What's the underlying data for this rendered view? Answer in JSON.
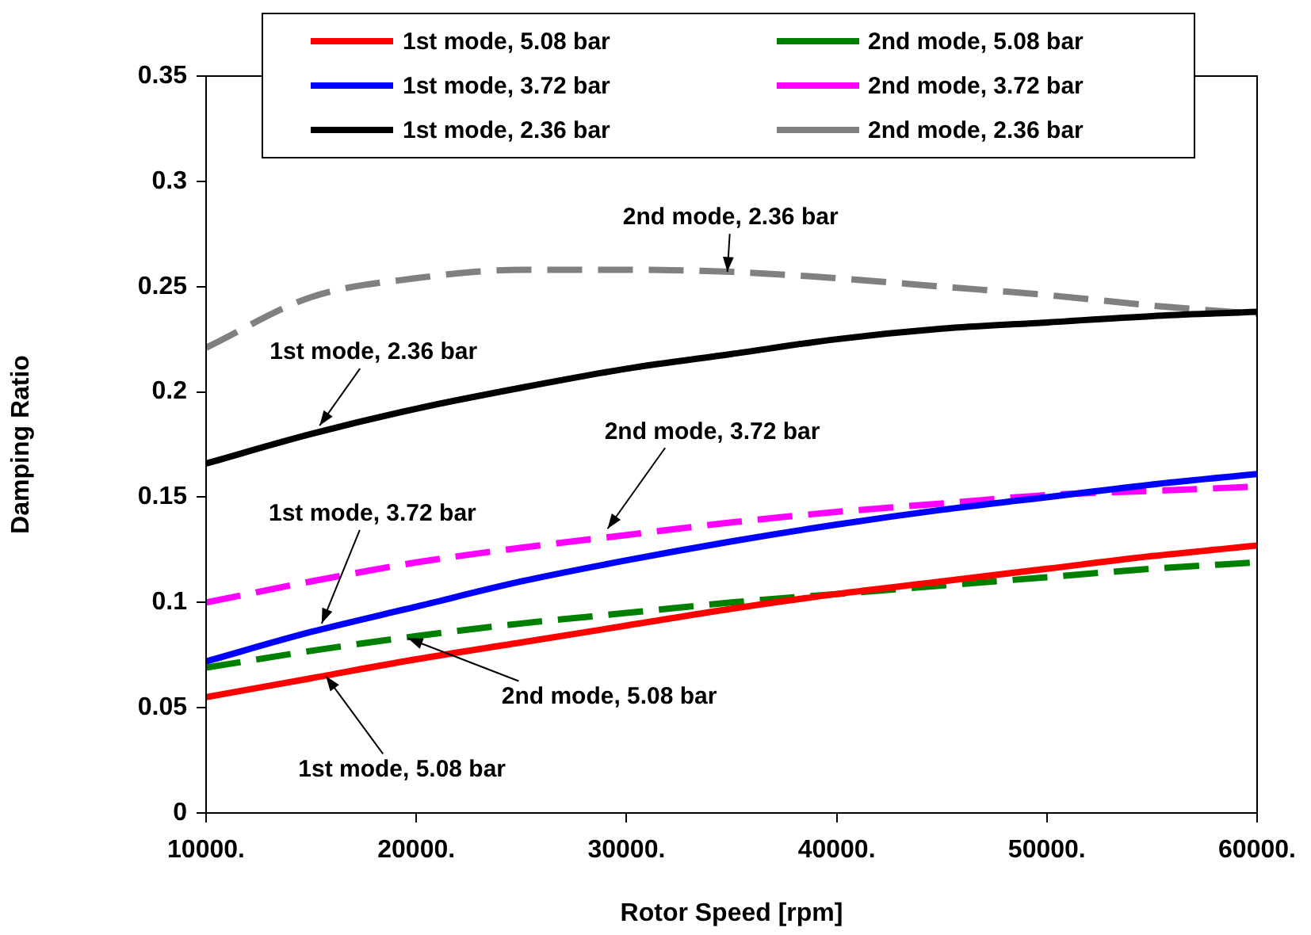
{
  "chart_data": {
    "type": "line",
    "xlabel": "Rotor Speed [rpm]",
    "ylabel": "Damping Ratio",
    "x": [
      10000,
      15000,
      20000,
      25000,
      30000,
      35000,
      40000,
      45000,
      50000,
      55000,
      60000
    ],
    "xlim": [
      10000,
      60000
    ],
    "xticks": [
      {
        "value": 10000,
        "label": "10000."
      },
      {
        "value": 20000,
        "label": "20000."
      },
      {
        "value": 30000,
        "label": "30000."
      },
      {
        "value": 40000,
        "label": "40000."
      },
      {
        "value": 50000,
        "label": "50000."
      },
      {
        "value": 60000,
        "label": "60000."
      }
    ],
    "ylim": [
      0,
      0.35
    ],
    "yticks": [
      0,
      0.05,
      0.1,
      0.15,
      0.2,
      0.25,
      0.3,
      0.35
    ],
    "grid": false,
    "legend": "top",
    "marker": "none",
    "series": [
      {
        "name": "1st mode, 5.08 bar",
        "color": "#ff0000",
        "line_style": "solid",
        "values": [
          0.055,
          0.064,
          0.073,
          0.081,
          0.089,
          0.097,
          0.104,
          0.11,
          0.116,
          0.122,
          0.127
        ]
      },
      {
        "name": "2nd mode, 5.08 bar",
        "color": "#008000",
        "line_style": "dashed",
        "values": [
          0.069,
          0.077,
          0.084,
          0.09,
          0.095,
          0.1,
          0.104,
          0.108,
          0.112,
          0.116,
          0.119
        ]
      },
      {
        "name": "1st mode, 3.72 bar",
        "color": "#0000ff",
        "line_style": "solid",
        "values": [
          0.072,
          0.086,
          0.098,
          0.11,
          0.12,
          0.129,
          0.137,
          0.144,
          0.15,
          0.156,
          0.161
        ]
      },
      {
        "name": "2nd mode, 3.72 bar",
        "color": "#ff00ff",
        "line_style": "dashed",
        "values": [
          0.1,
          0.11,
          0.119,
          0.126,
          0.132,
          0.138,
          0.143,
          0.147,
          0.151,
          0.153,
          0.155
        ]
      },
      {
        "name": "1st mode, 2.36 bar",
        "color": "#000000",
        "line_style": "solid",
        "values": [
          0.166,
          0.18,
          0.192,
          0.202,
          0.211,
          0.218,
          0.225,
          0.23,
          0.233,
          0.236,
          0.238
        ]
      },
      {
        "name": "2nd mode, 2.36 bar",
        "color": "#808080",
        "line_style": "dashed",
        "values": [
          0.221,
          0.245,
          0.254,
          0.258,
          0.258,
          0.257,
          0.254,
          0.25,
          0.246,
          0.241,
          0.237
        ]
      }
    ],
    "annotations": [
      {
        "text": "2nd mode, 2.36 bar",
        "x": 34800,
        "y": 0.257
      },
      {
        "text": "1st mode, 2.36 bar",
        "x": 15400,
        "y": 0.184
      },
      {
        "text": "2nd mode, 3.72 bar",
        "x": 29100,
        "y": 0.135
      },
      {
        "text": "1st mode, 3.72 bar",
        "x": 15500,
        "y": 0.09
      },
      {
        "text": "2nd mode, 5.08 bar",
        "x": 19600,
        "y": 0.083
      },
      {
        "text": "1st mode, 5.08 bar",
        "x": 15700,
        "y": 0.065
      }
    ]
  }
}
